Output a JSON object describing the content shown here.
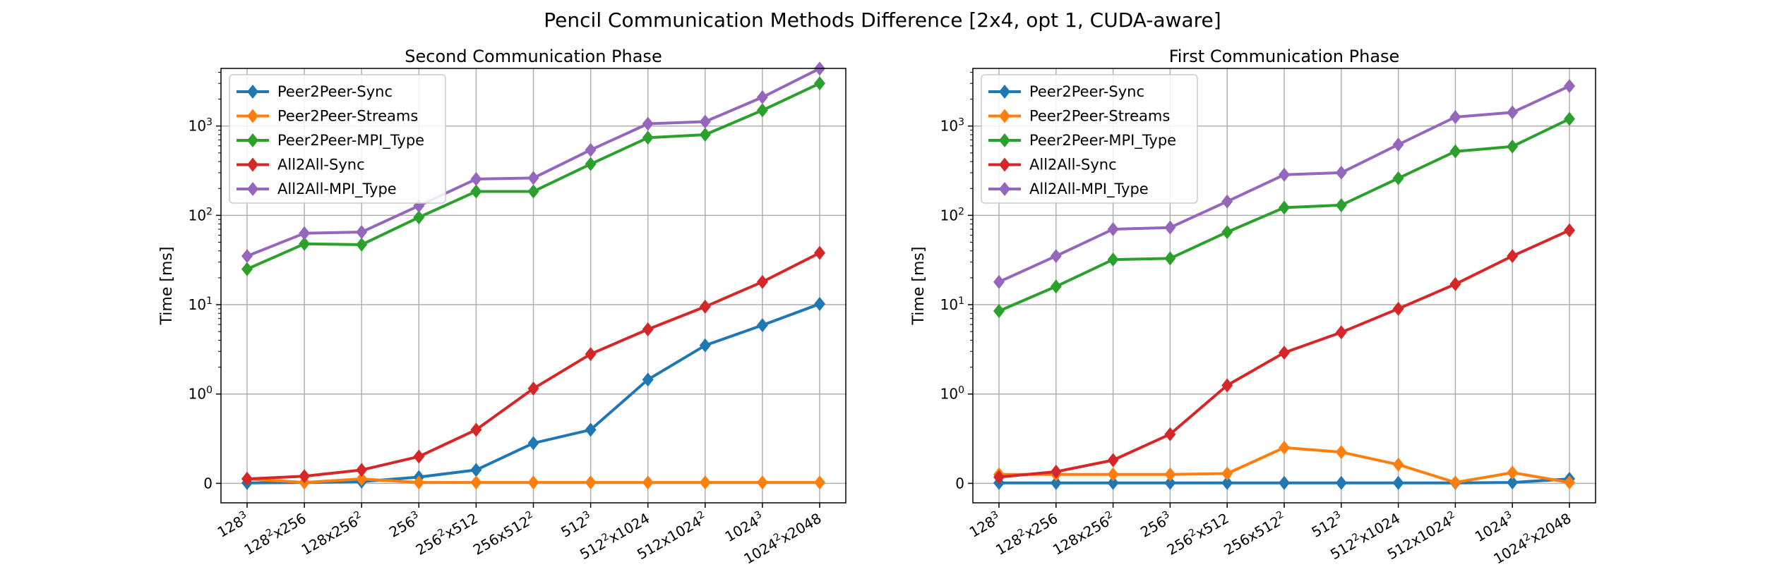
{
  "figure": {
    "suptitle": "Pencil Communication Methods Difference [2x4, opt 1, CUDA-aware]"
  },
  "colors": {
    "Peer2Peer-Sync": "#1f77b4",
    "Peer2Peer-Streams": "#ff7f0e",
    "Peer2Peer-MPI_Type": "#2ca02c",
    "All2All-Sync": "#d62728",
    "All2All-MPI_Type": "#9467bd"
  },
  "chart_data": [
    {
      "type": "line",
      "title": "Second Communication Phase",
      "xlabel": "",
      "ylabel": "Time [ms]",
      "yscale": "symlog",
      "yticks": [
        "0",
        "10^0",
        "10^1",
        "10^2",
        "10^3"
      ],
      "grid": true,
      "legend_position": "upper-left",
      "categories": [
        "128^3",
        "128^2x256",
        "128x256^2",
        "256^3",
        "256^2x512",
        "256x512^2",
        "512^3",
        "512^2x1024",
        "512x1024^2",
        "1024^3",
        "1024^2x2048"
      ],
      "series": [
        {
          "name": "Peer2Peer-Sync",
          "values": [
            0.005,
            0.01,
            0.02,
            0.07,
            0.15,
            0.45,
            0.6,
            1.45,
            3.5,
            5.9,
            10.2
          ]
        },
        {
          "name": "Peer2Peer-Streams",
          "values": [
            0.05,
            0.01,
            0.05,
            0.01,
            0.01,
            0.01,
            0.01,
            0.01,
            0.01,
            0.01,
            0.01
          ]
        },
        {
          "name": "Peer2Peer-MPI_Type",
          "values": [
            25,
            48,
            47,
            95,
            185,
            185,
            375,
            740,
            800,
            1500,
            3000
          ]
        },
        {
          "name": "All2All-Sync",
          "values": [
            0.05,
            0.08,
            0.15,
            0.3,
            0.6,
            1.15,
            2.8,
            5.3,
            9.5,
            18,
            38
          ]
        },
        {
          "name": "All2All-MPI_Type",
          "values": [
            35,
            63,
            65,
            128,
            255,
            262,
            540,
            1060,
            1120,
            2100,
            4400
          ]
        }
      ]
    },
    {
      "type": "line",
      "title": "First Communication Phase",
      "xlabel": "",
      "ylabel": "Time [ms]",
      "yscale": "symlog",
      "yticks": [
        "0",
        "10^0",
        "10^1",
        "10^2",
        "10^3"
      ],
      "grid": true,
      "legend_position": "upper-left",
      "categories": [
        "128^3",
        "128^2x256",
        "128x256^2",
        "256^3",
        "256^2x512",
        "256x512^2",
        "512^3",
        "512^2x1024",
        "512x1024^2",
        "1024^3",
        "1024^2x2048"
      ],
      "series": [
        {
          "name": "Peer2Peer-Sync",
          "values": [
            0.005,
            0.005,
            0.005,
            0.005,
            0.005,
            0.005,
            0.005,
            0.005,
            0.005,
            0.01,
            0.05
          ]
        },
        {
          "name": "Peer2Peer-Streams",
          "values": [
            0.1,
            0.1,
            0.1,
            0.1,
            0.11,
            0.4,
            0.35,
            0.21,
            0.01,
            0.12,
            0.01
          ]
        },
        {
          "name": "Peer2Peer-MPI_Type",
          "values": [
            8.5,
            16,
            32,
            33,
            65,
            122,
            130,
            260,
            520,
            590,
            1200
          ]
        },
        {
          "name": "All2All-Sync",
          "values": [
            0.07,
            0.13,
            0.26,
            0.55,
            1.25,
            2.9,
            4.9,
            9.0,
            17,
            35,
            68
          ]
        },
        {
          "name": "All2All-MPI_Type",
          "values": [
            18,
            35,
            70,
            73,
            143,
            285,
            300,
            620,
            1260,
            1420,
            2800
          ]
        }
      ]
    }
  ]
}
